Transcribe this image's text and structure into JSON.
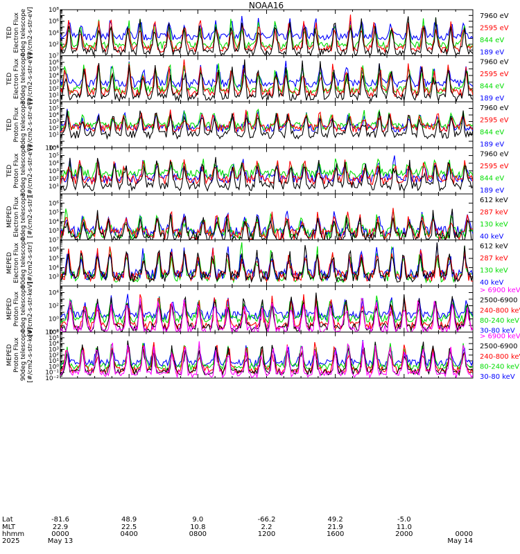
{
  "title": "NOAA16",
  "series_colors": {
    "black": "#000000",
    "red": "#ff0000",
    "green": "#00dd00",
    "blue": "#0000ff",
    "magenta": "#ff00ff"
  },
  "chart_data": [
    {
      "type": "line",
      "ylabel": [
        "TED",
        "Electron Flux",
        "0deg telescope",
        "[#/cm2-s-str-eV]"
      ],
      "scale": "log",
      "ylim_exp": [
        0,
        8
      ],
      "tick_exps": [
        2,
        4,
        6,
        8
      ],
      "legend": [
        {
          "label": "7960 eV",
          "color": "#000000"
        },
        {
          "label": "2595 eV",
          "color": "#ff0000"
        },
        {
          "label": "844 eV",
          "color": "#00dd00"
        },
        {
          "label": "189 eV",
          "color": "#0000ff"
        }
      ],
      "sim": {
        "order": [
          "blue",
          "green",
          "red",
          "black"
        ],
        "base": {
          "blue": 3.3,
          "green": 1.8,
          "red": 1.2,
          "black": 0.6
        },
        "peak": 6.2
      }
    },
    {
      "type": "line",
      "ylabel": [
        "TED",
        "Electron Flux",
        "30deg telescope",
        "[#/cm2-s-str-eV]"
      ],
      "scale": "log",
      "ylim_exp": [
        0,
        7
      ],
      "tick_exps": [
        1,
        2,
        3,
        4,
        5,
        6,
        7
      ],
      "legend": [
        {
          "label": "7960 eV",
          "color": "#000000"
        },
        {
          "label": "2595 eV",
          "color": "#ff0000"
        },
        {
          "label": "844 eV",
          "color": "#00dd00"
        },
        {
          "label": "189 eV",
          "color": "#0000ff"
        }
      ],
      "sim": {
        "order": [
          "blue",
          "green",
          "red",
          "black"
        ],
        "base": {
          "blue": 2.8,
          "green": 1.8,
          "red": 1.4,
          "black": 0.7
        },
        "peak": 5.6
      }
    },
    {
      "type": "line",
      "ylabel": [
        "TED",
        "Proton Flux",
        "0deg telescope",
        "[#/cm2-s-str-eV]"
      ],
      "scale": "log",
      "ylim_exp": [
        -1,
        6
      ],
      "tick_exps": [
        -1,
        1,
        2,
        3,
        4,
        5,
        6
      ],
      "legend": [
        {
          "label": "7960 eV",
          "color": "#000000"
        },
        {
          "label": "2595 eV",
          "color": "#ff0000"
        },
        {
          "label": "844 eV",
          "color": "#00dd00"
        },
        {
          "label": "189 eV",
          "color": "#0000ff"
        }
      ],
      "sim": {
        "order": [
          "blue",
          "green",
          "red",
          "black"
        ],
        "base": {
          "blue": 2.0,
          "green": 2.3,
          "red": 2.0,
          "black": 1.0
        },
        "peak": 4.4
      }
    },
    {
      "type": "line",
      "ylabel": [
        "TED",
        "Proton Flux",
        "30deg telescope",
        "[#/cm2-s-str-eV]"
      ],
      "scale": "log",
      "ylim_exp": [
        0,
        6
      ],
      "tick_exps": [
        1,
        2,
        3,
        4,
        5,
        6
      ],
      "legend": [
        {
          "label": "7960 eV",
          "color": "#000000"
        },
        {
          "label": "2595 eV",
          "color": "#ff0000"
        },
        {
          "label": "844 eV",
          "color": "#00dd00"
        },
        {
          "label": "189 eV",
          "color": "#0000ff"
        }
      ],
      "sim": {
        "order": [
          "blue",
          "green",
          "red",
          "black"
        ],
        "base": {
          "blue": 2.0,
          "green": 2.6,
          "red": 1.8,
          "black": 1.0
        },
        "peak": 4.3
      }
    },
    {
      "type": "line",
      "ylabel": [
        "MEPED",
        "Electron Flux",
        "0deg telescope",
        "[#/cm2-s-str]"
      ],
      "scale": "log",
      "ylim_exp": [
        2,
        7
      ],
      "tick_exps": [
        3,
        4,
        5,
        6
      ],
      "legend": [
        {
          "label": "612 keV",
          "color": "#000000"
        },
        {
          "label": "287 keV",
          "color": "#ff0000"
        },
        {
          "label": "130 keV",
          "color": "#00dd00"
        },
        {
          "label": "40 keV",
          "color": "#0000ff"
        }
      ],
      "sim": {
        "order": [
          "blue",
          "green",
          "red",
          "black"
        ],
        "base": {
          "blue": 2.9,
          "green": 2.7,
          "red": 2.6,
          "black": 2.3
        },
        "peak": 4.8
      }
    },
    {
      "type": "line",
      "ylabel": [
        "MEPED",
        "Electron Flux",
        "90deg telescope",
        "[#/cm2-s-str]"
      ],
      "scale": "log",
      "ylim_exp": [
        2,
        7
      ],
      "tick_exps": [
        3,
        4,
        5,
        6,
        7
      ],
      "legend": [
        {
          "label": "612 keV",
          "color": "#000000"
        },
        {
          "label": "287 keV",
          "color": "#ff0000"
        },
        {
          "label": "130 keV",
          "color": "#00dd00"
        },
        {
          "label": "40 keV",
          "color": "#0000ff"
        }
      ],
      "sim": {
        "order": [
          "green",
          "blue",
          "red",
          "black"
        ],
        "base": {
          "blue": 3.2,
          "green": 3.0,
          "red": 3.1,
          "black": 3.0
        },
        "peak": 6.0
      }
    },
    {
      "type": "line",
      "ylabel": [
        "MEPED",
        "Proton Flux",
        "0deg telescope",
        "[#/cm2-s-str-keV]"
      ],
      "scale": "log",
      "ylim_exp": [
        -2,
        5
      ],
      "tick_exps": [
        -2,
        0,
        2,
        4
      ],
      "legend": [
        {
          "label": "> 6900 keV",
          "color": "#ff00ff"
        },
        {
          "label": "2500-6900",
          "color": "#000000"
        },
        {
          "label": "240-800 keV",
          "color": "#ff0000"
        },
        {
          "label": "80-240 keV",
          "color": "#00dd00"
        },
        {
          "label": "30-80 keV",
          "color": "#0000ff"
        }
      ],
      "sim": {
        "order": [
          "blue",
          "green",
          "red",
          "black",
          "magenta"
        ],
        "base": {
          "blue": 0.5,
          "green": 0.0,
          "red": -1.0,
          "black": -1.3,
          "magenta": -1.6
        },
        "peak": 3.2
      }
    },
    {
      "type": "line",
      "ylabel": [
        "MEPED",
        "Proton Flux",
        "90deg telescope",
        "[#/cm2-s-str-keV]"
      ],
      "scale": "log",
      "ylim_exp": [
        -2,
        6
      ],
      "tick_exps": [
        -2,
        -1,
        0,
        1,
        2,
        3,
        4,
        5,
        6
      ],
      "legend": [
        {
          "label": "> 6900 keV",
          "color": "#ff00ff"
        },
        {
          "label": "2500-6900",
          "color": "#000000"
        },
        {
          "label": "240-800 keV",
          "color": "#ff0000"
        },
        {
          "label": "80-240 keV",
          "color": "#00dd00"
        },
        {
          "label": "30-80 keV",
          "color": "#0000ff"
        }
      ],
      "sim": {
        "order": [
          "blue",
          "green",
          "red",
          "black",
          "magenta"
        ],
        "base": {
          "blue": 0.6,
          "green": 0.0,
          "red": -0.6,
          "black": -0.9,
          "magenta": -1.3
        },
        "peak": 4.0
      }
    }
  ],
  "xaxis": {
    "row_labels": [
      "Lat",
      "MLT",
      "hhmm",
      "2025"
    ],
    "columns": [
      {
        "values": [
          "-81.6",
          "22.9",
          "0000",
          "May 13"
        ]
      },
      {
        "values": [
          "48.9",
          "22.5",
          "0400",
          ""
        ]
      },
      {
        "values": [
          "9.0",
          "10.8",
          "0800",
          ""
        ]
      },
      {
        "values": [
          "-66.2",
          "2.2",
          "1200",
          ""
        ]
      },
      {
        "values": [
          "49.2",
          "21.9",
          "1600",
          ""
        ]
      },
      {
        "values": [
          "-5.0",
          "11.0",
          "2000",
          ""
        ]
      },
      {
        "values": [
          "",
          "",
          "0000",
          "May 14"
        ]
      }
    ]
  }
}
